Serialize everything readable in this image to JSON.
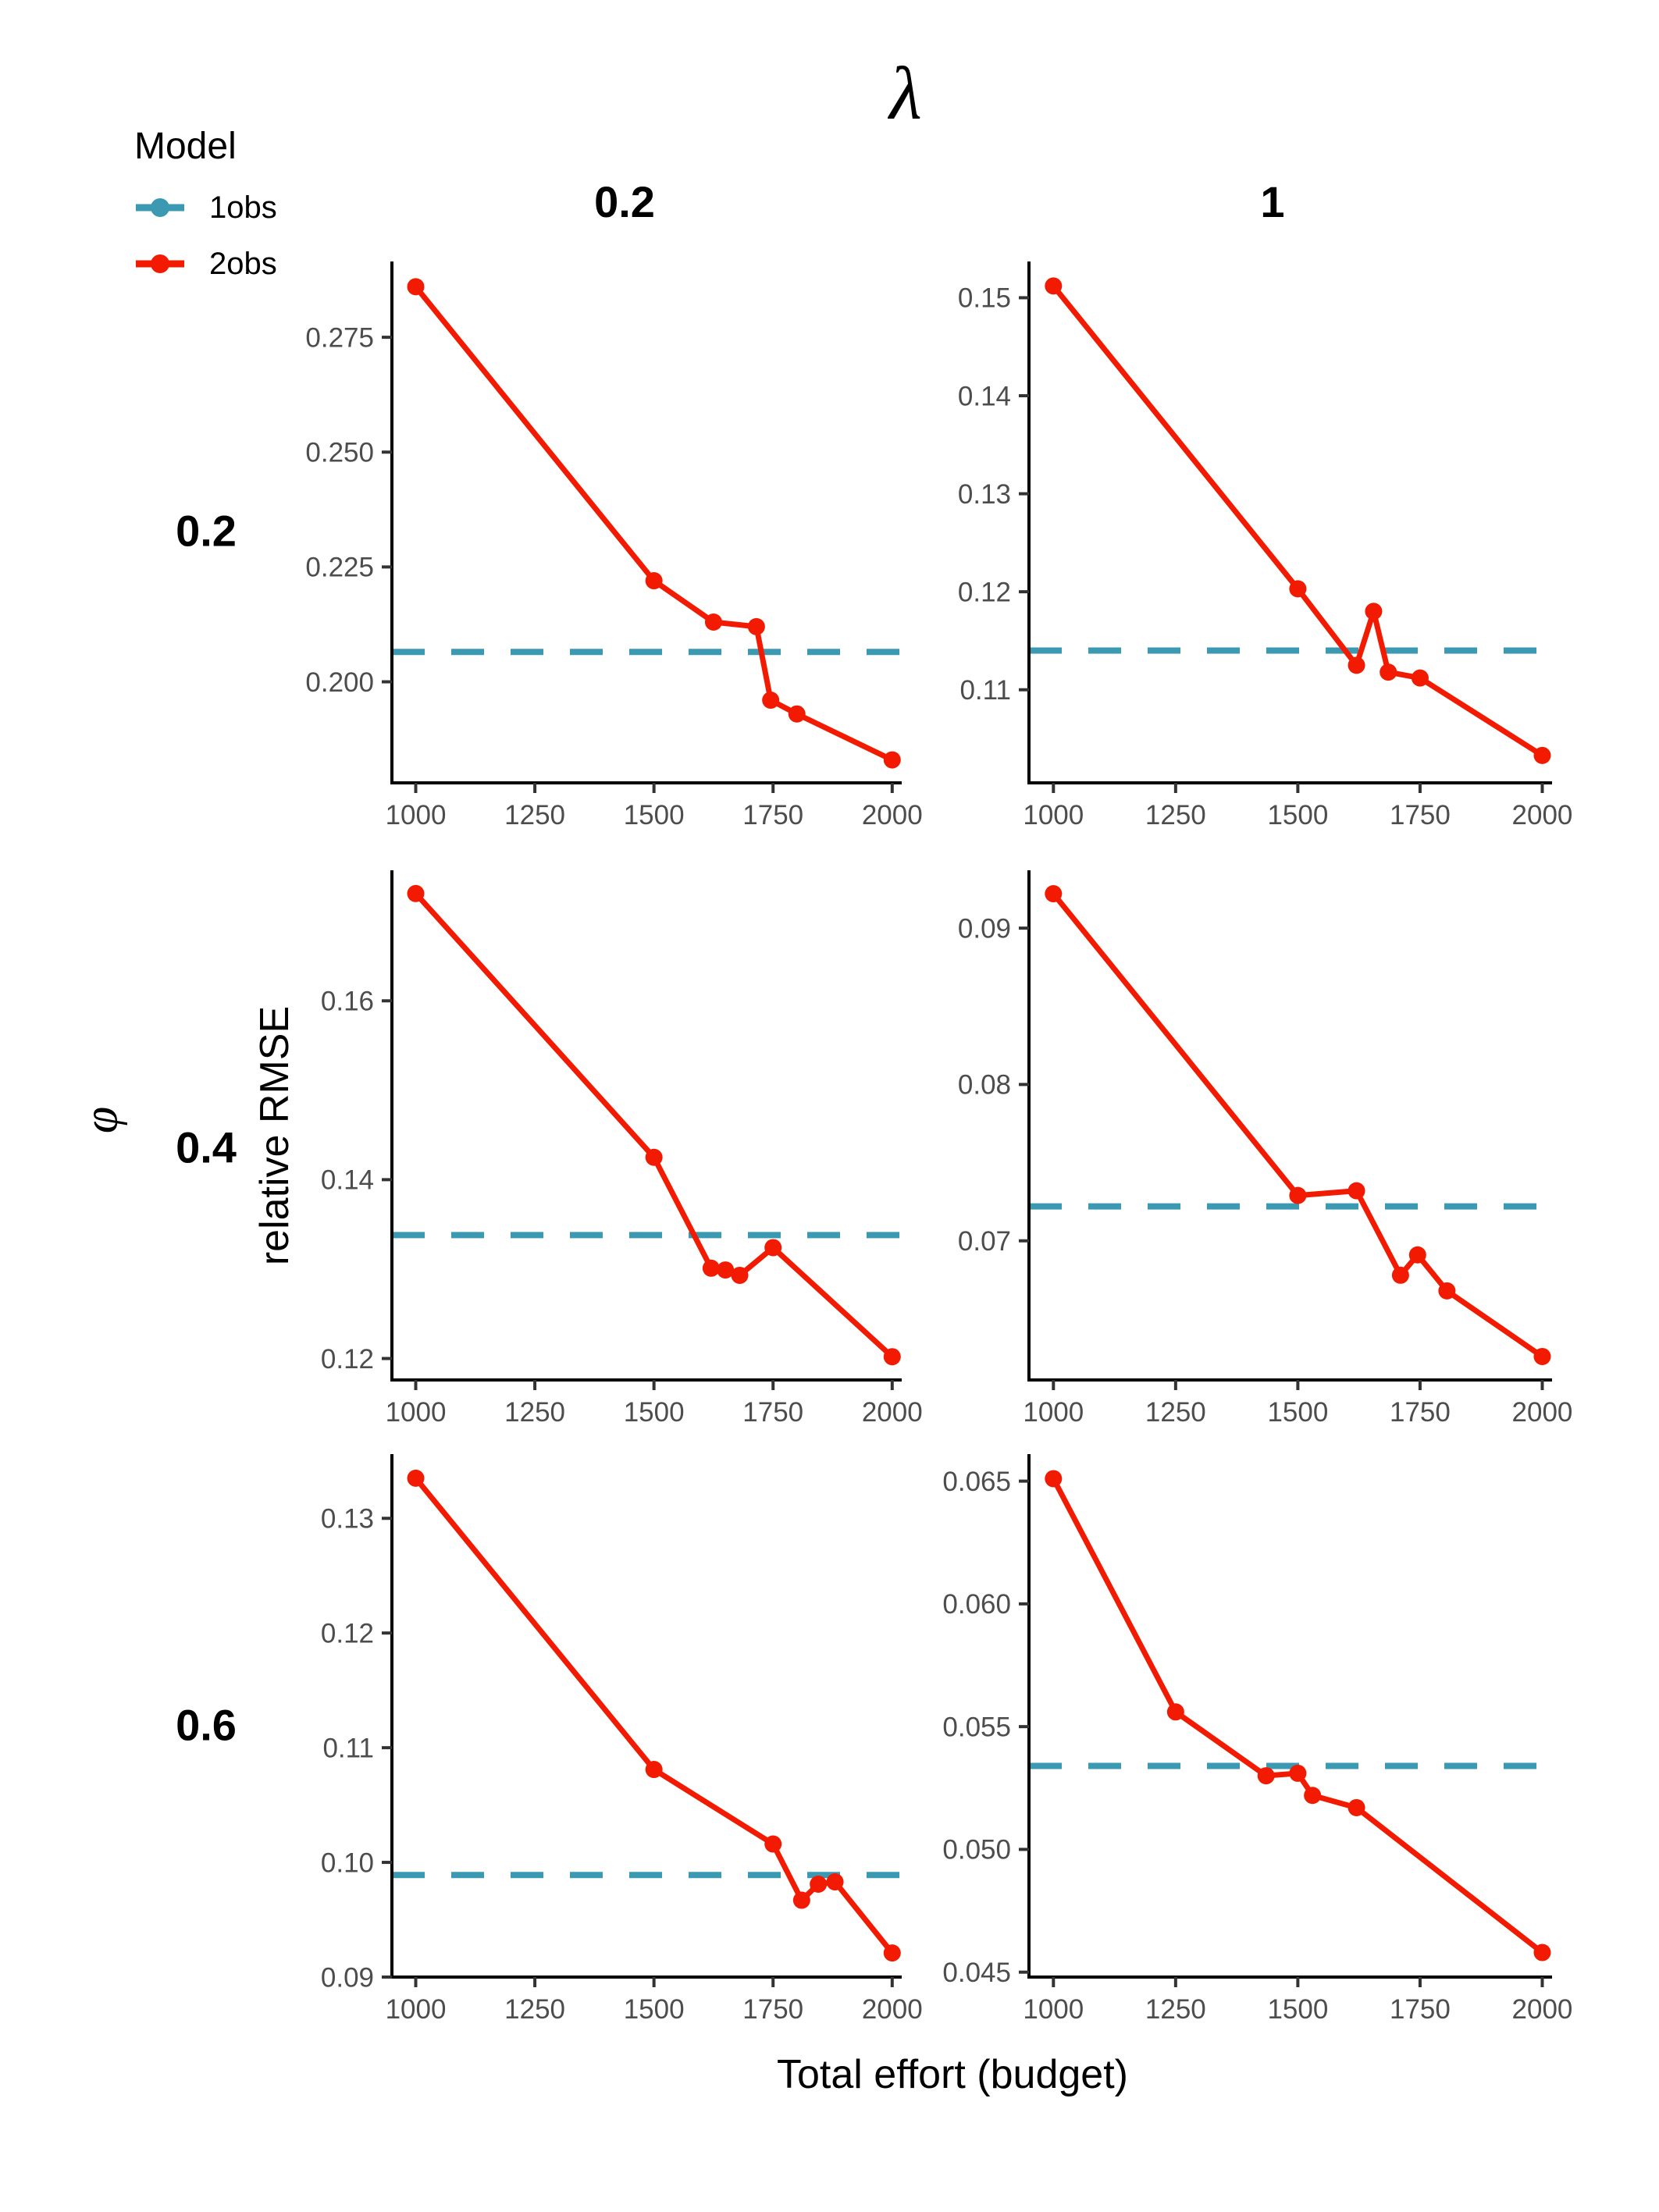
{
  "figure": {
    "title": "λ",
    "col_facet_labels": [
      "0.2",
      "1"
    ],
    "row_facet_symbol": "φ",
    "row_facet_labels": [
      "0.2",
      "0.4",
      "0.6"
    ],
    "y_axis_title": "relative RMSE",
    "x_axis_title": "Total effort (budget)"
  },
  "legend": {
    "title": "Model",
    "items": [
      {
        "label": "1obs",
        "color": "#3B9AB2"
      },
      {
        "label": "2obs",
        "color": "#F21A00"
      }
    ]
  },
  "colors": {
    "series_2obs": "#F21A00",
    "baseline_1obs": "#3B9AB2",
    "axis_text": "#4D4D4D",
    "axis_line": "#000000",
    "strip_text": "#000000"
  },
  "chart_data": {
    "type": "line",
    "title": "λ",
    "xlabel": "Total effort (budget)",
    "ylabel": "relative RMSE",
    "legend_position": "top-left",
    "grid": false,
    "facets": {
      "col_variable": "λ",
      "col_values": [
        "0.2",
        "1"
      ],
      "row_variable": "φ",
      "row_values": [
        "0.2",
        "0.4",
        "0.6"
      ]
    },
    "x_ticks": [
      1000,
      1250,
      1500,
      1750,
      2000
    ],
    "xlim": [
      950,
      2020
    ],
    "panels": [
      {
        "row": 0,
        "col": 0,
        "phi": "0.2",
        "lambda": "0.2",
        "ylim": [
          0.178,
          0.2915
        ],
        "yticks": {
          "values": [
            0.2,
            0.225,
            0.25,
            0.275
          ],
          "labels": [
            "0.200",
            "0.225",
            "0.250",
            "0.275"
          ]
        },
        "series_2obs": {
          "x": [
            1000,
            1500,
            1625,
            1715,
            1745,
            1800,
            2000
          ],
          "y": [
            0.286,
            0.222,
            0.213,
            0.212,
            0.196,
            0.193,
            0.183
          ]
        },
        "baseline_1obs": 0.2065
      },
      {
        "row": 0,
        "col": 1,
        "phi": "0.2",
        "lambda": "1",
        "ylim": [
          0.1005,
          0.1537
        ],
        "yticks": {
          "values": [
            0.11,
            0.12,
            0.13,
            0.14,
            0.15
          ],
          "labels": [
            "0.11",
            "0.12",
            "0.13",
            "0.14",
            "0.15"
          ]
        },
        "series_2obs": {
          "x": [
            1000,
            1500,
            1620,
            1655,
            1685,
            1750,
            2000
          ],
          "y": [
            0.1512,
            0.1203,
            0.1125,
            0.118,
            0.1118,
            0.1112,
            0.1033
          ]
        },
        "baseline_1obs": 0.114
      },
      {
        "row": 1,
        "col": 0,
        "phi": "0.4",
        "lambda": "0.2",
        "ylim": [
          0.1176,
          0.1746
        ],
        "yticks": {
          "values": [
            0.12,
            0.14,
            0.16
          ],
          "labels": [
            "0.12",
            "0.14",
            "0.16"
          ]
        },
        "series_2obs": {
          "x": [
            1000,
            1500,
            1620,
            1650,
            1680,
            1750,
            2000
          ],
          "y": [
            0.172,
            0.1425,
            0.1301,
            0.1299,
            0.1293,
            0.1324,
            0.1202
          ]
        },
        "baseline_1obs": 0.1338
      },
      {
        "row": 1,
        "col": 1,
        "phi": "0.4",
        "lambda": "1",
        "ylim": [
          0.0611,
          0.0937
        ],
        "yticks": {
          "values": [
            0.07,
            0.08,
            0.09
          ],
          "labels": [
            "0.07",
            "0.08",
            "0.09"
          ]
        },
        "series_2obs": {
          "x": [
            1000,
            1500,
            1620,
            1710,
            1745,
            1805,
            2000
          ],
          "y": [
            0.0922,
            0.0729,
            0.0732,
            0.0678,
            0.0691,
            0.0668,
            0.0626
          ]
        },
        "baseline_1obs": 0.0722
      },
      {
        "row": 2,
        "col": 0,
        "phi": "0.6",
        "lambda": "0.2",
        "ylim": [
          0.09,
          0.1356
        ],
        "yticks": {
          "values": [
            0.09,
            0.1,
            0.11,
            0.12,
            0.13
          ],
          "labels": [
            "0.09",
            "0.10",
            "0.11",
            "0.12",
            "0.13"
          ]
        },
        "series_2obs": {
          "x": [
            1000,
            1500,
            1750,
            1810,
            1845,
            1880,
            2000
          ],
          "y": [
            0.1335,
            0.1081,
            0.1016,
            0.0967,
            0.0981,
            0.0983,
            0.0921
          ]
        },
        "baseline_1obs": 0.0989
      },
      {
        "row": 2,
        "col": 1,
        "phi": "0.6",
        "lambda": "1",
        "ylim": [
          0.0448,
          0.0661
        ],
        "yticks": {
          "values": [
            0.045,
            0.05,
            0.055,
            0.06,
            0.065
          ],
          "labels": [
            "0.045",
            "0.050",
            "0.055",
            "0.060",
            "0.065"
          ]
        },
        "series_2obs": {
          "x": [
            1000,
            1250,
            1435,
            1500,
            1530,
            1620,
            2000
          ],
          "y": [
            0.0651,
            0.0556,
            0.053,
            0.0531,
            0.0522,
            0.0517,
            0.0458
          ]
        },
        "baseline_1obs": 0.0534
      }
    ]
  }
}
